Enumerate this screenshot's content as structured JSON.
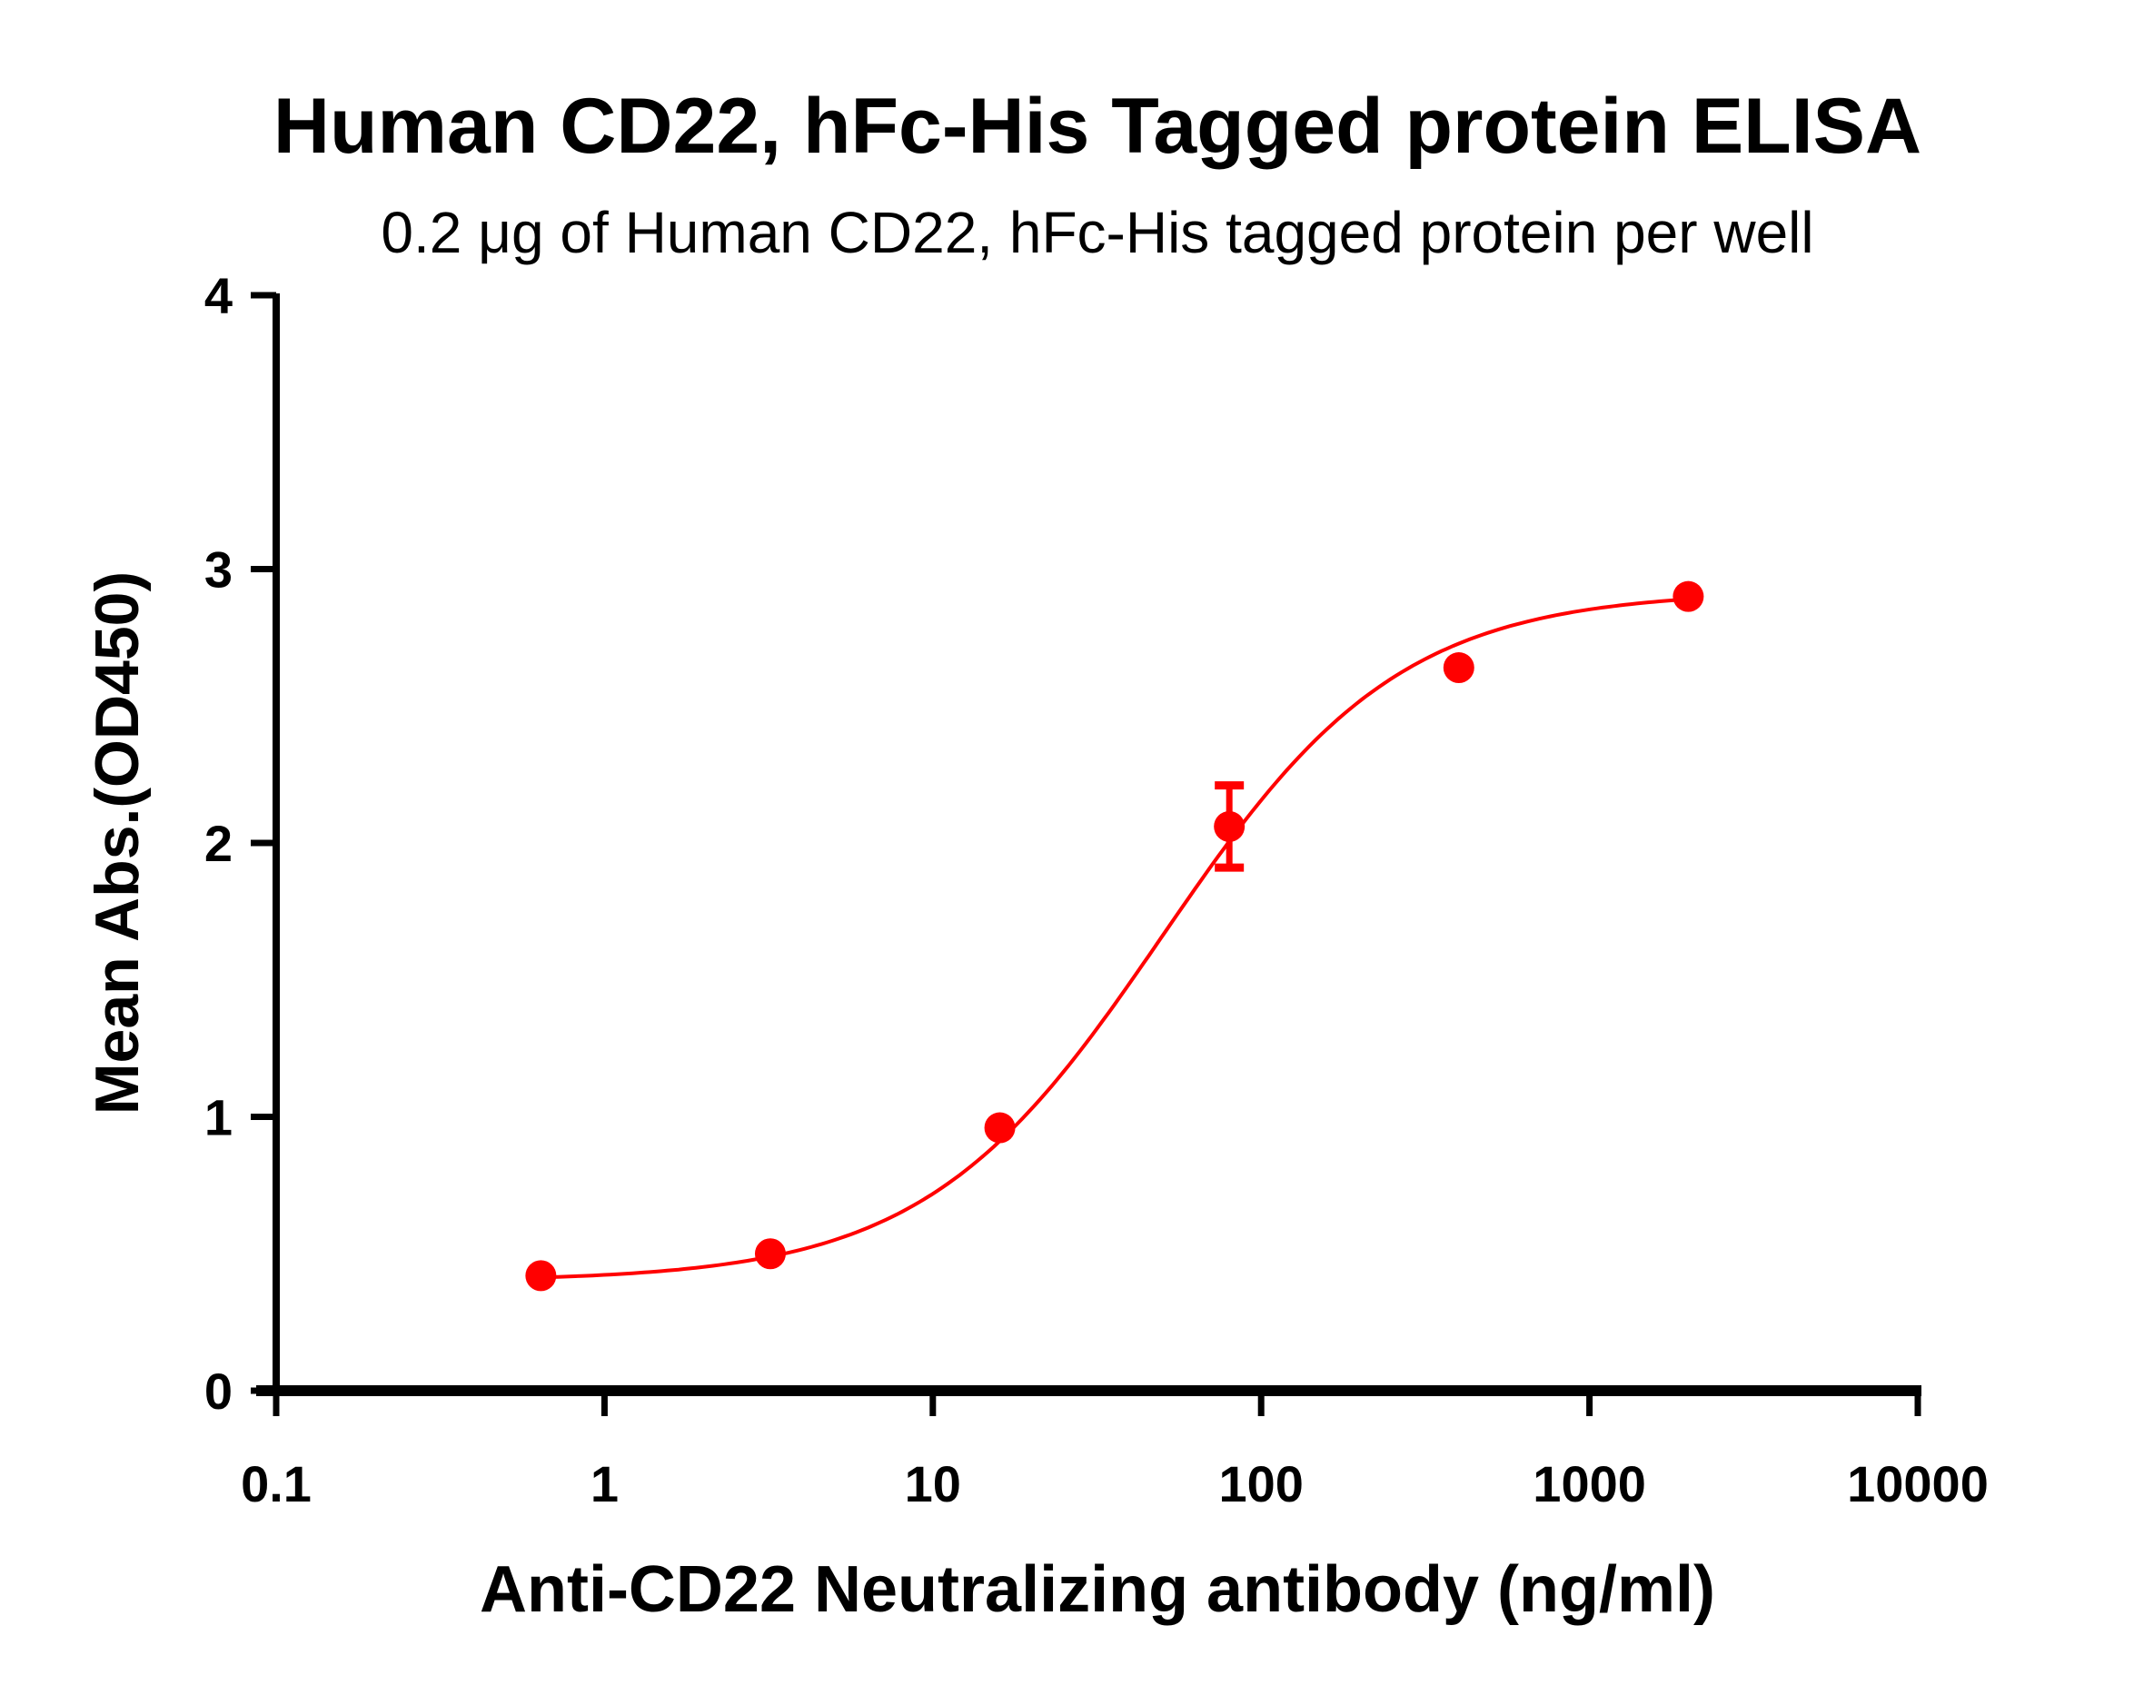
{
  "chart_data": {
    "type": "scatter",
    "title": "Human CD22,  hFc-His Tagged protein ELISA",
    "subtitle": "0.2 μg of Human CD22, hFc-His tagged protein per well",
    "xlabel": "Anti-CD22 Neutralizing antibody (ng/ml)",
    "ylabel": "Mean Abs.(OD450)",
    "xscale": "log",
    "xlim": [
      0.1,
      10000
    ],
    "ylim": [
      0,
      4
    ],
    "xticks": [
      "0.1",
      "1",
      "10",
      "100",
      "1000",
      "10000"
    ],
    "yticks": [
      "0",
      "1",
      "2",
      "3",
      "4"
    ],
    "grid": false,
    "color": "#ff0000",
    "series": [
      {
        "x": [
          0.64,
          3.2,
          16,
          80,
          400,
          2000
        ],
        "y": [
          0.42,
          0.5,
          0.96,
          2.06,
          2.64,
          2.9
        ],
        "error": [
          0,
          0,
          0,
          0.15,
          0,
          0
        ]
      }
    ],
    "fit": {
      "model": "4PL",
      "bottom": 0.4,
      "top": 2.92,
      "ec50": 50,
      "hill": 1.2
    }
  }
}
